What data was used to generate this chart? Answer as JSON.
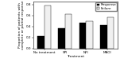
{
  "categories": [
    "No treatment",
    "SPI",
    "NPI",
    "MAOI"
  ],
  "response": [
    0.23,
    0.37,
    0.47,
    0.43
  ],
  "failure": [
    0.78,
    0.62,
    0.5,
    0.57
  ],
  "response_color": "#000000",
  "failure_color": "#f0f0f0",
  "ylabel": "Proportion of patients with\ncomplete or partial response",
  "xlabel": "Treatment",
  "ylim": [
    0.0,
    0.85
  ],
  "yticks": [
    0.0,
    0.2,
    0.4,
    0.6,
    0.8
  ],
  "legend_labels": [
    "Response",
    "Failure"
  ],
  "bar_width": 0.32,
  "axis_fontsize": 3.2,
  "tick_fontsize": 3.0,
  "legend_fontsize": 3.0
}
